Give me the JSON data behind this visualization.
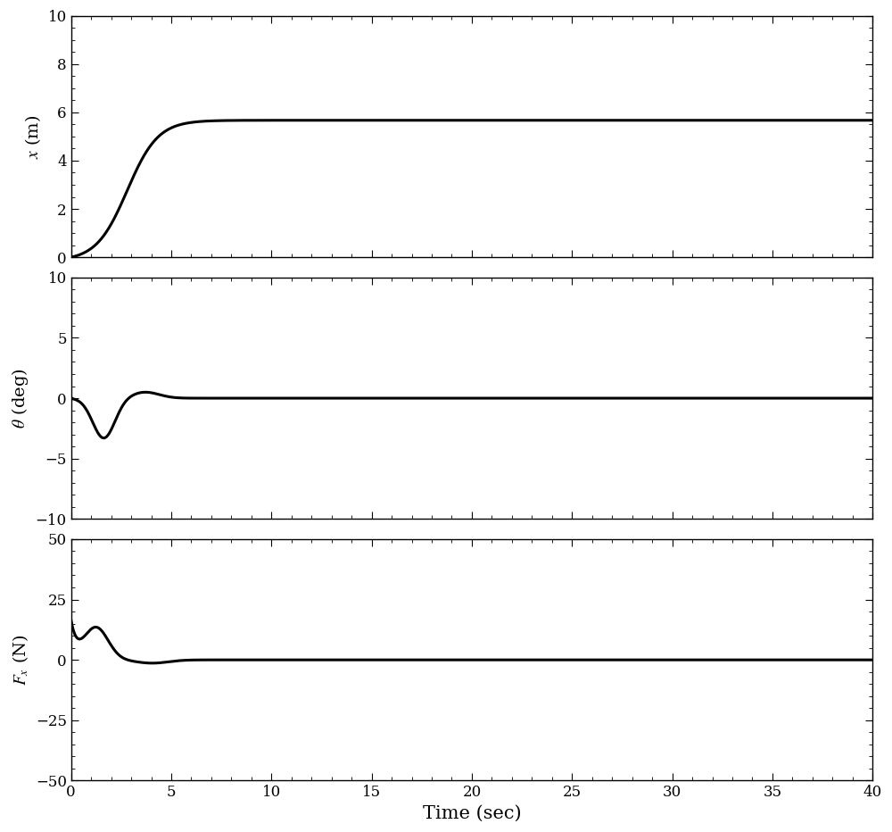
{
  "t_end": 40,
  "dt": 0.005,
  "x_final": 5.8,
  "subplot1": {
    "ylabel": "x  (m)",
    "ylim": [
      0,
      10
    ],
    "yticks": [
      0,
      2,
      4,
      6,
      8,
      10
    ]
  },
  "subplot2": {
    "ylabel": "θ  (deg)",
    "ylim": [
      -10,
      10
    ],
    "yticks": [
      -10,
      -5,
      0,
      5,
      10
    ]
  },
  "subplot3": {
    "ylabel": "F_x  (N)",
    "ylim": [
      -50,
      50
    ],
    "yticks": [
      -50,
      -25,
      0,
      25,
      50
    ]
  },
  "xlabel": "Time (sec)",
  "xticks": [
    0,
    5,
    10,
    15,
    20,
    25,
    30,
    35,
    40
  ],
  "line_color": "#000000",
  "line_width": 2.2,
  "bg_color": "#ffffff",
  "tick_fontsize": 12,
  "label_fontsize": 14,
  "xlabel_fontsize": 15,
  "x_curve": {
    "logistic_k": 1.3,
    "logistic_t0": 2.8,
    "scale": 5.82
  },
  "theta_curve": {
    "amp1": -8.0,
    "t1": 1.82,
    "sig1": 0.55,
    "amp2": 4.5,
    "t2": 4.0,
    "sig2": 0.7,
    "decay": 0.62
  },
  "fx_curve": {
    "init": 15.0,
    "amp1": 35.0,
    "t1": 1.5,
    "sig1": 0.6,
    "amp2": -27.0,
    "t2": 4.5,
    "sig2": 0.8,
    "decay": 0.7
  }
}
